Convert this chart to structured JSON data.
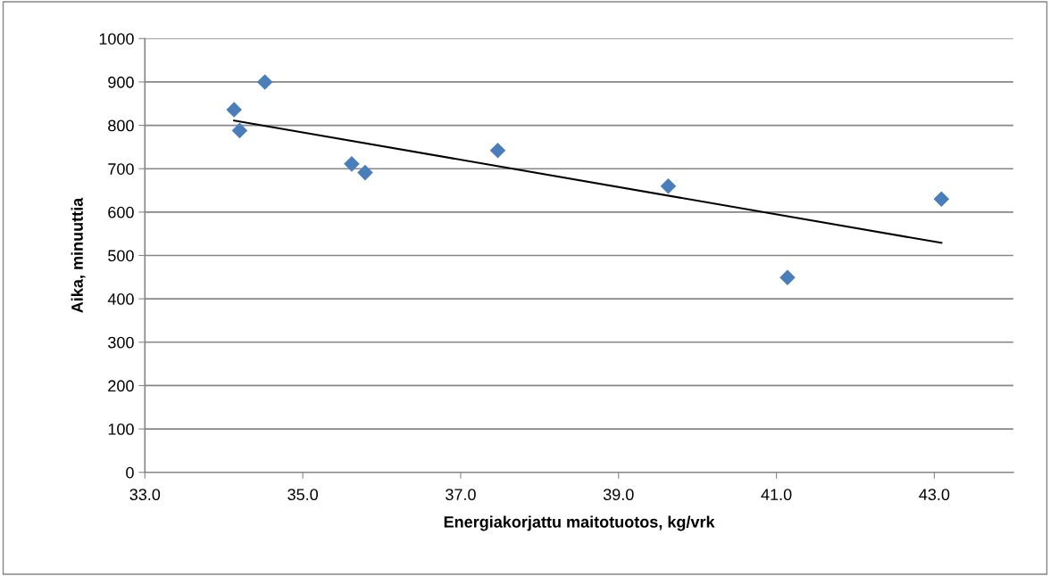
{
  "chart_data": {
    "type": "scatter",
    "xlabel": "Energiakorjattu maitotuotos, kg/vrk",
    "ylabel": "Aika, minuuttia",
    "series": [
      {
        "marker": "diamond",
        "color": "#4a7ebb",
        "x": [
          34.13,
          34.2,
          34.52,
          35.62,
          35.79,
          37.47,
          39.63,
          41.14,
          43.09
        ],
        "values": [
          836,
          788,
          900,
          711,
          691,
          742,
          660,
          449,
          630
        ]
      },
      {
        "type": "line",
        "marker": "none",
        "color": "#000000",
        "x": [
          34.13,
          43.09
        ],
        "values": [
          811,
          529
        ]
      }
    ],
    "grid": "y",
    "xlim": [
      33,
      44
    ],
    "xticks": [
      {
        "value": 33,
        "label": "33.0"
      },
      {
        "value": 35,
        "label": "35.0"
      },
      {
        "value": 37,
        "label": "37.0"
      },
      {
        "value": 39,
        "label": "39.0"
      },
      {
        "value": 41,
        "label": "41.0"
      },
      {
        "value": 43,
        "label": "43.0"
      }
    ],
    "ylim": [
      0,
      1000
    ],
    "yticks": [
      0,
      100,
      200,
      300,
      400,
      500,
      600,
      700,
      800,
      900,
      1000
    ]
  }
}
